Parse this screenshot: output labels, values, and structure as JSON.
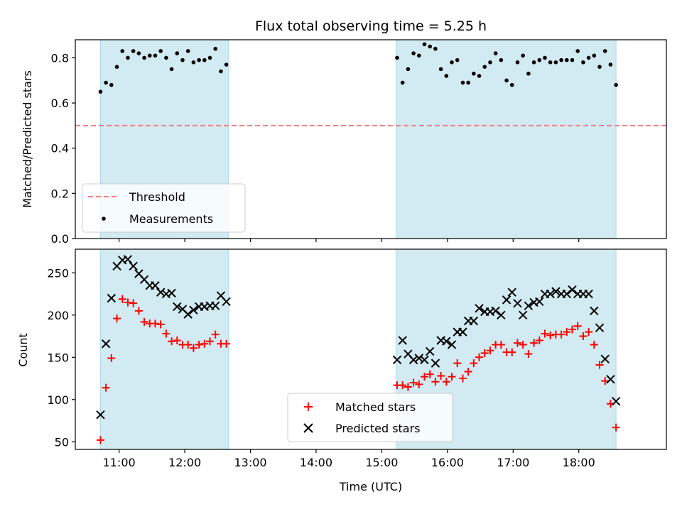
{
  "chart_data": [
    {
      "type": "scatter",
      "title": "Flux total observing time = 5.25 h",
      "xlabel": "",
      "ylabel": "Matched/Predicted stars",
      "xlim": [
        "10:20",
        "19:20"
      ],
      "ylim": [
        0.0,
        0.88
      ],
      "yticks": [
        "0.0",
        "0.2",
        "0.4",
        "0.6",
        "0.8"
      ],
      "grid": false,
      "legend_position": "lower-left",
      "shaded_intervals": [
        [
          "10:43",
          "12:40"
        ],
        [
          "15:13",
          "18:34"
        ]
      ],
      "shade_color": "#add8e6",
      "threshold": {
        "name": "Threshold",
        "value": 0.5,
        "color": "#f08080",
        "style": "dashed"
      },
      "series": [
        {
          "name": "Measurements",
          "color": "#000000",
          "marker": "dot",
          "x": [
            "10:43",
            "10:48",
            "10:53",
            "10:58",
            "11:03",
            "11:08",
            "11:13",
            "11:18",
            "11:23",
            "11:28",
            "11:33",
            "11:38",
            "11:43",
            "11:48",
            "11:53",
            "11:58",
            "12:03",
            "12:08",
            "12:13",
            "12:18",
            "12:23",
            "12:28",
            "12:33",
            "12:38",
            "15:14",
            "15:19",
            "15:24",
            "15:29",
            "15:34",
            "15:39",
            "15:44",
            "15:49",
            "15:54",
            "15:59",
            "16:04",
            "16:09",
            "16:14",
            "16:19",
            "16:24",
            "16:29",
            "16:34",
            "16:39",
            "16:44",
            "16:49",
            "16:54",
            "16:59",
            "17:04",
            "17:09",
            "17:14",
            "17:19",
            "17:24",
            "17:29",
            "17:34",
            "17:39",
            "17:44",
            "17:49",
            "17:54",
            "17:59",
            "18:04",
            "18:09",
            "18:14",
            "18:19",
            "18:24",
            "18:29",
            "18:34"
          ],
          "y": [
            0.65,
            0.69,
            0.68,
            0.76,
            0.83,
            0.8,
            0.83,
            0.82,
            0.8,
            0.81,
            0.81,
            0.83,
            0.8,
            0.75,
            0.82,
            0.79,
            0.83,
            0.78,
            0.79,
            0.79,
            0.8,
            0.84,
            0.74,
            0.77,
            0.8,
            0.69,
            0.75,
            0.82,
            0.81,
            0.86,
            0.85,
            0.84,
            0.75,
            0.72,
            0.78,
            0.79,
            0.69,
            0.69,
            0.73,
            0.72,
            0.76,
            0.78,
            0.82,
            0.79,
            0.7,
            0.68,
            0.78,
            0.81,
            0.73,
            0.78,
            0.79,
            0.8,
            0.78,
            0.78,
            0.79,
            0.79,
            0.79,
            0.83,
            0.78,
            0.8,
            0.81,
            0.76,
            0.83,
            0.77,
            0.68
          ]
        }
      ]
    },
    {
      "type": "scatter",
      "title": "",
      "xlabel": "Time (UTC)",
      "ylabel": "Count",
      "xlim": [
        "10:20",
        "19:20"
      ],
      "ylim": [
        41,
        278
      ],
      "xticks": [
        "11:00",
        "12:00",
        "13:00",
        "14:00",
        "15:00",
        "16:00",
        "17:00",
        "18:00"
      ],
      "yticks": [
        "50",
        "100",
        "150",
        "200",
        "250"
      ],
      "grid": false,
      "legend_position": "lower-center",
      "shaded_intervals": [
        [
          "10:43",
          "12:40"
        ],
        [
          "15:13",
          "18:34"
        ]
      ],
      "shade_color": "#add8e6",
      "series": [
        {
          "name": "Matched stars",
          "color": "#ff0000",
          "marker": "plus",
          "x": [
            "10:43",
            "10:48",
            "10:53",
            "10:58",
            "11:03",
            "11:08",
            "11:13",
            "11:18",
            "11:23",
            "11:28",
            "11:33",
            "11:38",
            "11:43",
            "11:48",
            "11:53",
            "11:58",
            "12:03",
            "12:08",
            "12:13",
            "12:18",
            "12:23",
            "12:28",
            "12:33",
            "12:38",
            "15:14",
            "15:19",
            "15:24",
            "15:29",
            "15:34",
            "15:39",
            "15:44",
            "15:49",
            "15:54",
            "15:59",
            "16:04",
            "16:09",
            "16:14",
            "16:19",
            "16:24",
            "16:29",
            "16:34",
            "16:39",
            "16:44",
            "16:49",
            "16:54",
            "16:59",
            "17:04",
            "17:09",
            "17:14",
            "17:19",
            "17:24",
            "17:29",
            "17:34",
            "17:39",
            "17:44",
            "17:49",
            "17:54",
            "17:59",
            "18:04",
            "18:09",
            "18:14",
            "18:19",
            "18:24",
            "18:29",
            "18:34"
          ],
          "y": [
            52,
            114,
            149,
            196,
            219,
            215,
            214,
            205,
            192,
            190,
            190,
            189,
            178,
            169,
            170,
            165,
            165,
            161,
            165,
            166,
            169,
            177,
            166,
            166,
            117,
            117,
            115,
            120,
            118,
            127,
            130,
            121,
            128,
            121,
            127,
            143,
            125,
            133,
            143,
            150,
            155,
            158,
            165,
            165,
            156,
            156,
            167,
            165,
            154,
            167,
            170,
            178,
            176,
            177,
            177,
            180,
            183,
            187,
            175,
            180,
            165,
            141,
            122,
            95,
            67
          ]
        },
        {
          "name": "Predicted stars",
          "color": "#000000",
          "marker": "x",
          "x": [
            "10:43",
            "10:48",
            "10:53",
            "10:58",
            "11:03",
            "11:08",
            "11:13",
            "11:18",
            "11:23",
            "11:28",
            "11:33",
            "11:38",
            "11:43",
            "11:48",
            "11:53",
            "11:58",
            "12:03",
            "12:08",
            "12:13",
            "12:18",
            "12:23",
            "12:28",
            "12:33",
            "12:38",
            "15:14",
            "15:19",
            "15:24",
            "15:29",
            "15:34",
            "15:39",
            "15:44",
            "15:49",
            "15:54",
            "15:59",
            "16:04",
            "16:09",
            "16:14",
            "16:19",
            "16:24",
            "16:29",
            "16:34",
            "16:39",
            "16:44",
            "16:49",
            "16:54",
            "16:59",
            "17:04",
            "17:09",
            "17:14",
            "17:19",
            "17:24",
            "17:29",
            "17:34",
            "17:39",
            "17:44",
            "17:49",
            "17:54",
            "17:59",
            "18:04",
            "18:09",
            "18:14",
            "18:19",
            "18:24",
            "18:29",
            "18:34"
          ],
          "y": [
            82,
            166,
            220,
            258,
            265,
            266,
            258,
            249,
            242,
            235,
            235,
            227,
            225,
            226,
            210,
            207,
            201,
            206,
            210,
            210,
            211,
            211,
            223,
            216,
            147,
            170,
            154,
            147,
            149,
            147,
            157,
            143,
            170,
            169,
            165,
            180,
            180,
            193,
            193,
            208,
            204,
            204,
            205,
            200,
            218,
            227,
            214,
            200,
            211,
            215,
            216,
            225,
            225,
            228,
            225,
            225,
            230,
            225,
            225,
            225,
            205,
            185,
            148,
            124,
            98
          ]
        }
      ]
    }
  ]
}
